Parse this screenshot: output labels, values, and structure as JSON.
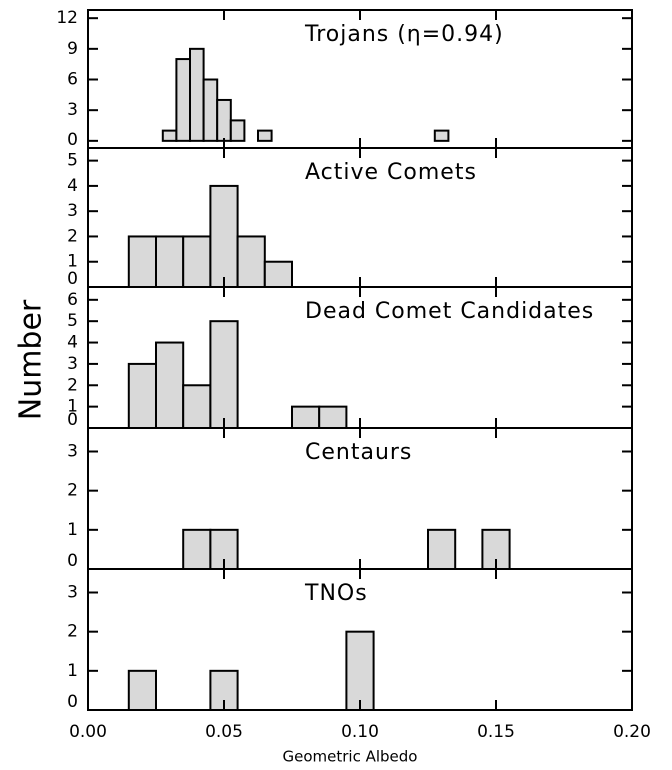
{
  "chart_data": [
    {
      "type": "histogram",
      "annotation": "Trojans (η=0.94)",
      "bins": [
        0.0275,
        0.0325,
        0.0375,
        0.0425,
        0.0475,
        0.0525,
        0.0575,
        0.0625,
        0.0675,
        0.0725,
        0.0775,
        0.0825,
        0.0875,
        0.0925,
        0.0975,
        0.1025,
        0.1075,
        0.1125,
        0.1175,
        0.1225,
        0.1275,
        0.1325
      ],
      "values": [
        1,
        8,
        9,
        6,
        4,
        2,
        0,
        1,
        0,
        0,
        0,
        0,
        0,
        0,
        0,
        0,
        0,
        0,
        0,
        0,
        1
      ],
      "color": "#d9d9d9",
      "xlim": [
        0,
        0.2
      ],
      "xticks": [
        0,
        0.05,
        0.1,
        0.15,
        0.2
      ],
      "ylim": [
        -0.7,
        12.8
      ],
      "yticks": [
        0,
        3,
        6,
        9,
        12
      ]
    },
    {
      "type": "histogram",
      "annotation": "Active Comets",
      "bins": [
        0.015,
        0.025,
        0.035,
        0.045,
        0.055,
        0.065,
        0.075
      ],
      "values": [
        2,
        2,
        2,
        4,
        2,
        1
      ],
      "color": "#d9d9d9",
      "xlim": [
        0,
        0.2
      ],
      "xticks": [
        0,
        0.05,
        0.1,
        0.15,
        0.2
      ],
      "ylim": [
        0,
        5.5
      ],
      "yticks": [
        0,
        1,
        2,
        3,
        4,
        5
      ]
    },
    {
      "type": "histogram",
      "annotation": "Dead Comet Candidates",
      "ylabel": "Number",
      "bins": [
        0.015,
        0.025,
        0.035,
        0.045,
        0.055,
        0.065,
        0.075,
        0.085,
        0.095
      ],
      "values": [
        3,
        4,
        2,
        5,
        0,
        0,
        1,
        1
      ],
      "color": "#d9d9d9",
      "xlim": [
        0,
        0.2
      ],
      "xticks": [
        0,
        0.05,
        0.1,
        0.15,
        0.2
      ],
      "ylim": [
        0,
        6.6
      ],
      "yticks": [
        0,
        1,
        2,
        3,
        4,
        5,
        6
      ]
    },
    {
      "type": "histogram",
      "annotation": "Centaurs",
      "bins": [
        0.035,
        0.045,
        0.055,
        0.065,
        0.075,
        0.085,
        0.095,
        0.105,
        0.115,
        0.125,
        0.135,
        0.145,
        0.155
      ],
      "values": [
        1,
        1,
        0,
        0,
        0,
        0,
        0,
        0,
        0,
        1,
        0,
        1
      ],
      "color": "#d9d9d9",
      "xlim": [
        0,
        0.2
      ],
      "xticks": [
        0,
        0.05,
        0.1,
        0.15,
        0.2
      ],
      "ylim": [
        0,
        3.6
      ],
      "yticks": [
        0,
        1,
        2,
        3
      ]
    },
    {
      "type": "histogram",
      "annotation": "TNOs",
      "xlabel": "Geometric Albedo",
      "bins": [
        0.015,
        0.025,
        0.035,
        0.045,
        0.055,
        0.065,
        0.075,
        0.085,
        0.095,
        0.105
      ],
      "values": [
        1,
        0,
        0,
        1,
        0,
        0,
        0,
        0,
        2
      ],
      "color": "#d9d9d9",
      "xlim": [
        0,
        0.2
      ],
      "xticks": [
        {
          "value": 0,
          "label": "0.00"
        },
        {
          "value": 0.05,
          "label": "0.05"
        },
        {
          "value": 0.1,
          "label": "0.10"
        },
        {
          "value": 0.15,
          "label": "0.15"
        },
        {
          "value": 0.2,
          "label": "0.20"
        }
      ],
      "ylim": [
        0,
        3.6
      ],
      "yticks": [
        0,
        1,
        2,
        3
      ]
    }
  ]
}
